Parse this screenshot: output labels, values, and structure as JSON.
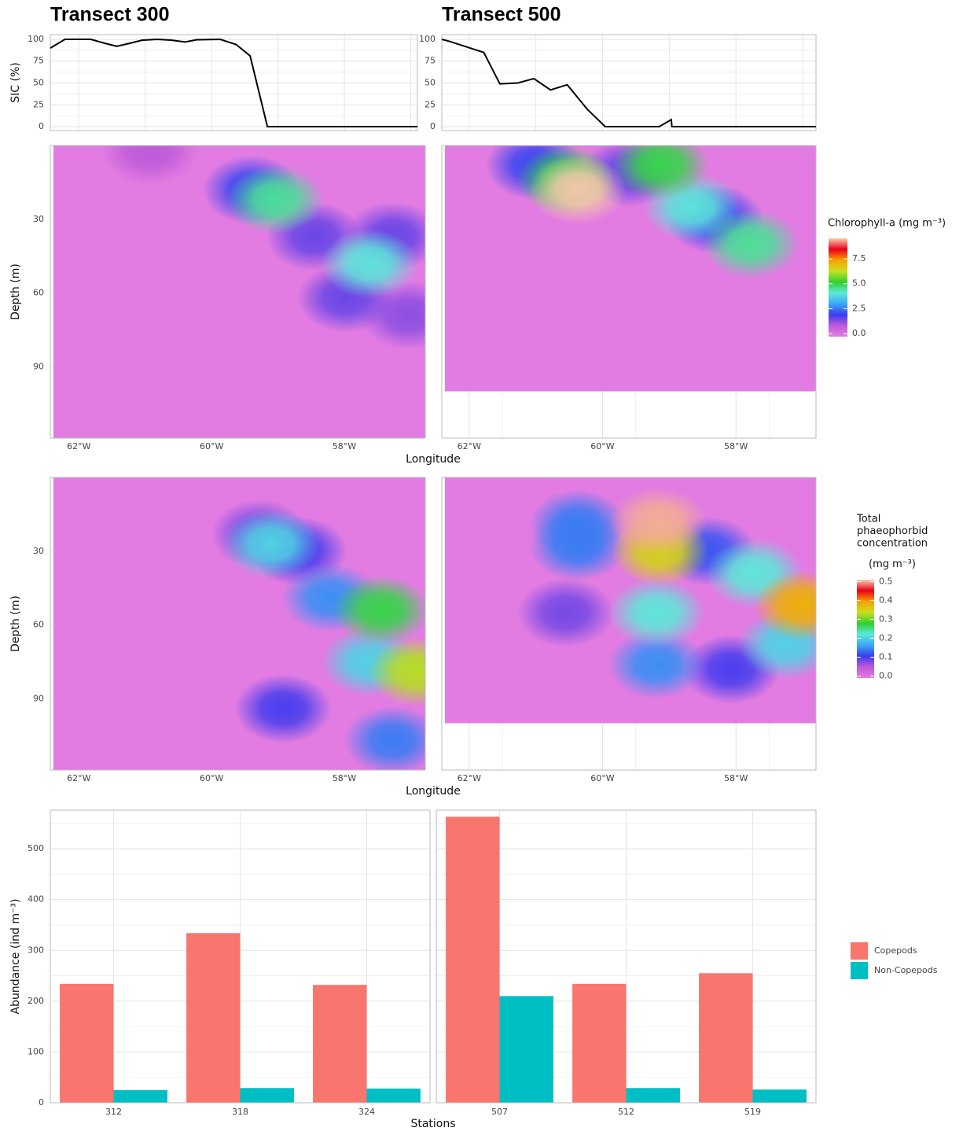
{
  "chart_data": [
    {
      "type": "line",
      "title": "Transect 300",
      "y_label": "SIC (%)",
      "color": "#000000",
      "x": [
        -62.43,
        -62.21,
        -61.82,
        -61.61,
        -61.43,
        -61.23,
        -61.05,
        -60.82,
        -60.6,
        -60.4,
        -60.22,
        -59.87,
        -59.63,
        -59.42,
        -59.16,
        -56.9
      ],
      "values": [
        90,
        100,
        100,
        95.5,
        92,
        95.5,
        99,
        100,
        99,
        97,
        99.5,
        100,
        94,
        81,
        0,
        0
      ],
      "xlim": [
        -62.43,
        -56.9
      ],
      "ylim": [
        -4.5,
        105.4
      ],
      "yticks": [
        0,
        25,
        50,
        75,
        100
      ],
      "x_grid": [
        -62,
        -61,
        -60,
        -59,
        -58,
        -57
      ]
    },
    {
      "type": "line",
      "title": "Transect 500",
      "color": "#000000",
      "x": [
        -62.41,
        -62.31,
        -61.78,
        -61.54,
        -61.27,
        -61.03,
        -60.78,
        -60.53,
        -60.23,
        -59.96,
        -59.15,
        -58.97,
        -58.96,
        -56.8
      ],
      "values": [
        100,
        98,
        85,
        49,
        50,
        55,
        42,
        48,
        20,
        0,
        0,
        8,
        0,
        0
      ],
      "xlim": [
        -62.41,
        -56.8
      ],
      "ylim": [
        -4.5,
        105.4
      ],
      "yticks": [
        0,
        25,
        50,
        75,
        100
      ],
      "x_grid": [
        -62,
        -61,
        -60,
        -59,
        -58,
        -57
      ]
    },
    {
      "type": "contour",
      "y_label": "Depth (m)",
      "x_label": "Longitude",
      "x": [
        -60.93,
        -57.03,
        -57.98,
        -58.45,
        -57.27,
        -59.4,
        -57.62,
        -59.04
      ],
      "y": [
        2,
        69,
        62,
        37,
        37,
        18,
        48,
        22
      ],
      "values": [
        0.8,
        1.2,
        1.5,
        1.5,
        1.5,
        2,
        4,
        4.5
      ],
      "xlim": [
        -62.43,
        -56.78
      ],
      "ylim": [
        0,
        119
      ],
      "y_reversed": true,
      "yticks": [
        30,
        60,
        90
      ],
      "xticks": [
        {
          "value": -62,
          "label": "62°W"
        },
        {
          "value": -60,
          "label": "60°W"
        },
        {
          "value": -58,
          "label": "58°W"
        }
      ]
    },
    {
      "type": "contour",
      "x": [
        -59.6,
        -61.02,
        -58.31,
        -58.66,
        -57.78,
        -60.55,
        -59.13,
        -60.37
      ],
      "y": [
        11,
        8,
        30,
        25,
        40,
        14,
        8,
        18
      ],
      "values": [
        1.5,
        2,
        2,
        4,
        4.5,
        5,
        5,
        9.5
      ],
      "xlim": [
        -62.41,
        -56.8
      ],
      "ylim": [
        0,
        119
      ],
      "y_reversed": true,
      "data_depth_max": 100,
      "xticks": [
        {
          "value": -62,
          "label": "62°W"
        },
        {
          "value": -60,
          "label": "60°W"
        },
        {
          "value": -58,
          "label": "58°W"
        }
      ]
    },
    {
      "type": "colorbar",
      "title": "Chlorophyll-a (mg m⁻³)",
      "lim": [
        -0.3,
        9.55
      ],
      "ticks": [
        {
          "value": 0,
          "label": "0.0"
        },
        {
          "value": 2.5,
          "label": "2.5"
        },
        {
          "value": 5,
          "label": "5.0"
        },
        {
          "value": 7.5,
          "label": "7.5"
        }
      ],
      "colors": [
        "#e27ce2",
        "#c05ad8",
        "#3b3bf0",
        "#3aa8f5",
        "#5fe8d8",
        "#2fd02f",
        "#c8e020",
        "#f8a000",
        "#e8001a",
        "#f5d0b0"
      ]
    },
    {
      "type": "contour",
      "y_label": "Depth (m)",
      "x_label": "Longitude",
      "x": [
        -59.28,
        -58.92,
        -58.69,
        -57.27,
        -58.21,
        -59.1,
        -57.62,
        -57.44,
        -56.91
      ],
      "y": [
        23,
        94,
        30,
        107,
        49,
        27,
        75,
        54,
        79
      ],
      "values": [
        0.08,
        0.1,
        0.1,
        0.14,
        0.15,
        0.2,
        0.2,
        0.27,
        0.33
      ],
      "xlim": [
        -62.43,
        -56.78
      ],
      "ylim": [
        0,
        119
      ],
      "y_reversed": true,
      "yticks": [
        30,
        60,
        90
      ],
      "xticks": [
        {
          "value": -62,
          "label": "62°W"
        },
        {
          "value": -60,
          "label": "60°W"
        },
        {
          "value": -58,
          "label": "58°W"
        }
      ]
    },
    {
      "type": "contour",
      "x": [
        -60.55,
        -58.07,
        -58.42,
        -60.37,
        -60.37,
        -59.19,
        -57.24,
        -59.19,
        -57.72,
        -59.14,
        -57.01,
        -59.16
      ],
      "y": [
        55,
        78,
        30,
        19,
        28,
        76,
        68,
        55,
        39,
        30,
        52,
        18
      ],
      "values": [
        0.08,
        0.1,
        0.12,
        0.14,
        0.14,
        0.15,
        0.2,
        0.22,
        0.22,
        0.35,
        0.38,
        0.5
      ],
      "xlim": [
        -62.41,
        -56.8
      ],
      "ylim": [
        0,
        119
      ],
      "y_reversed": true,
      "data_depth_max": 100,
      "xticks": [
        {
          "value": -62,
          "label": "62°W"
        },
        {
          "value": -60,
          "label": "60°W"
        },
        {
          "value": -58,
          "label": "58°W"
        }
      ]
    },
    {
      "type": "colorbar",
      "title_lines": [
        "Total",
        "phaeophorbid",
        "concentration",
        "(mg m⁻³)"
      ],
      "lim": [
        -0.01,
        0.51
      ],
      "ticks": [
        {
          "value": 0,
          "label": "0.0"
        },
        0.1,
        0.2,
        0.3,
        0.4,
        0.5
      ],
      "colors": [
        "#e27ce2",
        "#c05ad8",
        "#3b3bf0",
        "#3aa8f5",
        "#5fe8d8",
        "#2fd02f",
        "#c8e020",
        "#f8a000",
        "#e8001a",
        "#f5d0b0"
      ]
    },
    {
      "type": "grouped_bar",
      "x_label": "Stations",
      "y_label": "Abundance (ind m⁻³)",
      "ylim": [
        0,
        576
      ],
      "yticks": [
        0,
        100,
        200,
        300,
        400,
        500
      ],
      "panels": [
        {
          "categories": [
            "312",
            "318",
            "324"
          ]
        },
        {
          "categories": [
            "507",
            "512",
            "519"
          ]
        }
      ],
      "series": [
        {
          "name": "Copepods",
          "color": "#F8766D",
          "values": [
            [
              234,
              334,
              232
            ],
            [
              563,
              234,
              255
            ]
          ]
        },
        {
          "name": "Non-Copepods",
          "color": "#00BFC4",
          "values": [
            [
              25,
              29,
              28
            ],
            [
              210,
              29,
              26
            ]
          ]
        }
      ]
    }
  ]
}
